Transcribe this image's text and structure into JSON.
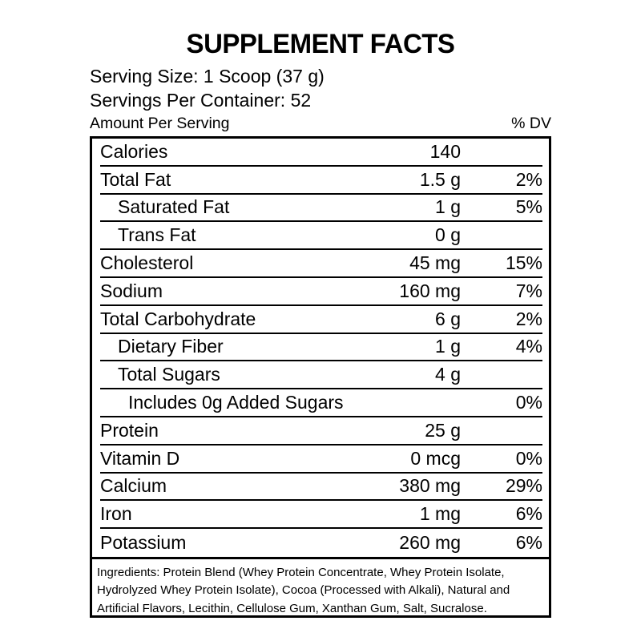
{
  "title": "SUPPLEMENT FACTS",
  "serving": {
    "size_line": "Serving Size: 1 Scoop (37 g)",
    "container_line": "Servings Per Container: 52"
  },
  "columns": {
    "amount_header": "Amount Per Serving",
    "dv_header": "% DV"
  },
  "nutrients": [
    {
      "label": "Calories",
      "amount": "140",
      "dv": "",
      "indent": 0
    },
    {
      "label": "Total Fat",
      "amount": "1.5 g",
      "dv": "2%",
      "indent": 0
    },
    {
      "label": "Saturated Fat",
      "amount": "1 g",
      "dv": "5%",
      "indent": 1
    },
    {
      "label": "Trans Fat",
      "amount": "0 g",
      "dv": "",
      "indent": 1
    },
    {
      "label": "Cholesterol",
      "amount": "45 mg",
      "dv": "15%",
      "indent": 0
    },
    {
      "label": "Sodium",
      "amount": "160 mg",
      "dv": "7%",
      "indent": 0
    },
    {
      "label": "Total Carbohydrate",
      "amount": "6 g",
      "dv": "2%",
      "indent": 0
    },
    {
      "label": "Dietary Fiber",
      "amount": "1 g",
      "dv": "4%",
      "indent": 1
    },
    {
      "label": "Total Sugars",
      "amount": "4 g",
      "dv": "",
      "indent": 1
    },
    {
      "label": "Includes 0g Added Sugars",
      "amount": "",
      "dv": "0%",
      "indent": 2
    },
    {
      "label": "Protein",
      "amount": "25 g",
      "dv": "",
      "indent": 0
    },
    {
      "label": "Vitamin D",
      "amount": "0 mcg",
      "dv": "0%",
      "indent": 0
    },
    {
      "label": "Calcium",
      "amount": "380 mg",
      "dv": "29%",
      "indent": 0
    },
    {
      "label": "Iron",
      "amount": "1 mg",
      "dv": "6%",
      "indent": 0
    },
    {
      "label": "Potassium",
      "amount": "260 mg",
      "dv": "6%",
      "indent": 0
    }
  ],
  "ingredients": "Ingredients: Protein Blend (Whey Protein Concentrate, Whey Protein Isolate, Hydrolyzed Whey Protein Isolate), Cocoa (Processed with Alkali), Natural and Artificial Flavors, Lecithin, Cellulose Gum, Xanthan Gum, Salt, Sucralose.",
  "colors": {
    "text": "#000000",
    "background": "#ffffff",
    "border": "#000000"
  }
}
